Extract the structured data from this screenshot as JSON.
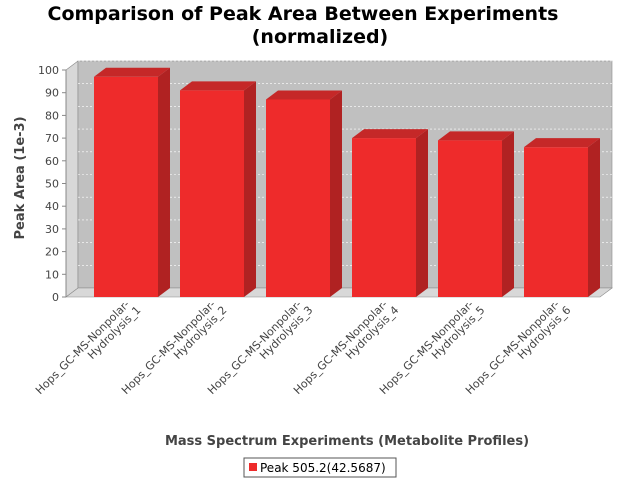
{
  "chart_data": {
    "type": "bar",
    "title_line1": "Comparison of Peak Area Between Experiments",
    "title_line2": "(normalized)",
    "xlabel": "Mass Spectrum Experiments (Metabolite Profiles)",
    "ylabel": "Peak Area (1e-3)",
    "ylim": [
      0,
      100
    ],
    "yticks": [
      0,
      10,
      20,
      30,
      40,
      50,
      60,
      70,
      80,
      90,
      100
    ],
    "grid": true,
    "legend_position": "bottom",
    "categories": [
      [
        "Hops_GC-MS-Nonpolar-",
        "Hydrolysis_1"
      ],
      [
        "Hops_GC-MS-Nonpolar-",
        "Hydrolysis_2"
      ],
      [
        "Hops_GC-MS-Nonpolar-",
        "Hydrolysis_3"
      ],
      [
        "Hops_GC-MS-Nonpolar-",
        "Hydrolysis_4"
      ],
      [
        "Hops_GC-MS-Nonpolar-",
        "Hydrolysis_5"
      ],
      [
        "Hops_GC-MS-Nonpolar-",
        "Hydrolysis_6"
      ]
    ],
    "series": [
      {
        "name": "Peak 505.2(42.5687)",
        "color": "#ee2b2b",
        "values": [
          97,
          91,
          87,
          70,
          69,
          66
        ]
      }
    ]
  }
}
